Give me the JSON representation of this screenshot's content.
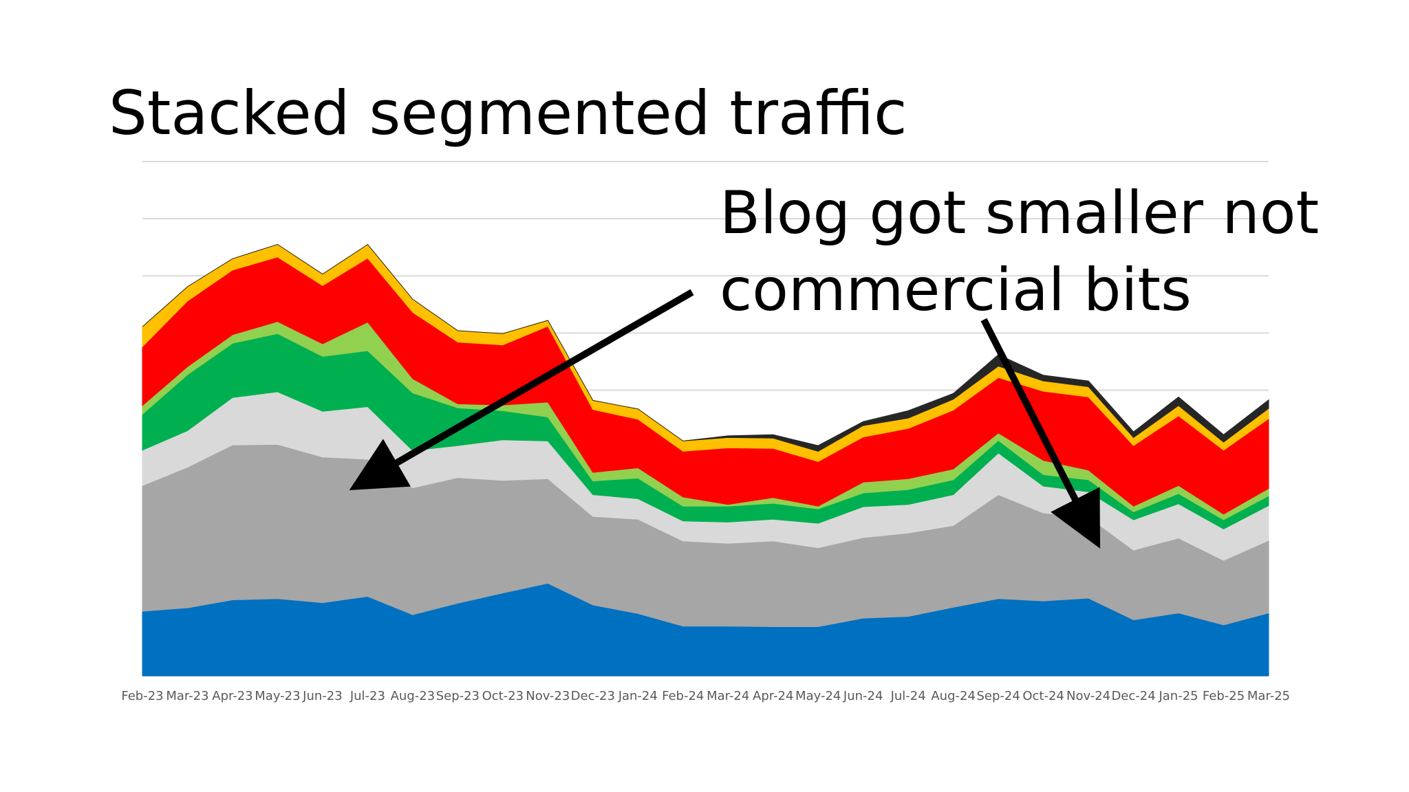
{
  "chart_data": {
    "type": "area",
    "stacked": true,
    "title": "Stacked segmented traffic",
    "xlabel": "",
    "ylabel": "",
    "ylim": [
      0,
      900
    ],
    "grid": true,
    "y_tick_labels_shown": false,
    "legend": "none",
    "categories": [
      "Feb-23",
      "Mar-23",
      "Apr-23",
      "May-23",
      "Jun-23",
      "Jul-23",
      "Aug-23",
      "Sep-23",
      "Oct-23",
      "Nov-23",
      "Dec-23",
      "Jan-24",
      "Feb-24",
      "Mar-24",
      "Apr-24",
      "May-24",
      "Jun-24",
      "Jul-24",
      "Aug-24",
      "Sep-24",
      "Oct-24",
      "Nov-24",
      "Dec-24",
      "Jan-25",
      "Feb-25",
      "Mar-25"
    ],
    "series": [
      {
        "color": "#0070C0",
        "values": [
          113,
          119,
          133,
          135,
          128,
          139,
          107,
          127,
          145,
          162,
          124,
          109,
          87,
          87,
          86,
          86,
          101,
          104,
          120,
          135,
          131,
          136,
          98,
          110,
          89,
          110
        ]
      },
      {
        "color": "#A6A6A6",
        "values": [
          220,
          246,
          271,
          270,
          255,
          240,
          222,
          220,
          197,
          183,
          155,
          165,
          149,
          145,
          150,
          138,
          141,
          146,
          143,
          182,
          154,
          142,
          122,
          131,
          113,
          127
        ]
      },
      {
        "color": "#D9D9D9",
        "values": [
          62,
          64,
          83,
          92,
          80,
          92,
          65,
          56,
          71,
          66,
          38,
          36,
          35,
          37,
          38,
          43,
          54,
          50,
          54,
          73,
          47,
          44,
          53,
          60,
          55,
          61
        ]
      },
      {
        "color": "#00B050",
        "values": [
          63,
          98,
          95,
          102,
          96,
          98,
          101,
          66,
          51,
          42,
          24,
          36,
          26,
          28,
          28,
          25,
          24,
          26,
          26,
          22,
          20,
          21,
          14,
          18,
          16,
          17
        ]
      },
      {
        "color": "#92D050",
        "values": [
          15,
          14,
          15,
          21,
          22,
          50,
          25,
          7,
          10,
          26,
          15,
          18,
          16,
          3,
          10,
          5,
          19,
          19,
          19,
          13,
          25,
          17,
          10,
          14,
          10,
          13
        ]
      },
      {
        "color": "#FF0000",
        "values": [
          103,
          115,
          113,
          113,
          102,
          112,
          116,
          108,
          105,
          133,
          110,
          85,
          80,
          99,
          86,
          78,
          79,
          88,
          103,
          97,
          121,
          128,
          106,
          122,
          112,
          122
        ]
      },
      {
        "color": "#FFC000",
        "values": [
          35,
          25,
          20,
          22,
          20,
          24,
          23,
          20,
          20,
          10,
          16,
          18,
          18,
          18,
          18,
          18,
          20,
          18,
          19,
          20,
          18,
          18,
          14,
          18,
          14,
          18
        ]
      },
      {
        "color": "#262626",
        "values": [
          0,
          0,
          0,
          0,
          0,
          0,
          0,
          0,
          0,
          0,
          0,
          0,
          0,
          3,
          6,
          10,
          7,
          13,
          10,
          20,
          10,
          10,
          10,
          15,
          13,
          15
        ]
      }
    ]
  },
  "annotation": {
    "line1": "Blog got smaller not",
    "line2": "commercial bits"
  }
}
